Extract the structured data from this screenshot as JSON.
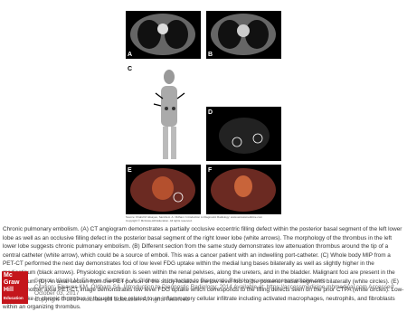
{
  "figure": {
    "panels": [
      "A",
      "B",
      "C",
      "D",
      "E",
      "F"
    ],
    "source": "Source: Khalid M. Elsayes, Sandra A. A. Oldham: Introduction to Diagnostic Radiology: www.accessmedicine.com",
    "copyright": "Copyright © McGraw-Hill Education. All rights reserved."
  },
  "caption": "Chronic pulmonary embolism. (A) CT angiogram demonstrates a partially occlusive eccentric filling defect within the posterior basal segment of the left lower lobe as well as an occlusive filling defect in the posterior basal segment of the right lower lobe (white arrows). The morphology of the thrombus in the left lower lobe suggests chronic pulmonary embolism. (B) Different section from the same study demonstrates low attenuation thrombus around the tip of a central catheter (white arrow), which could be a source of emboli. This was a cancer patient with an indwelling port-catheter. (C) Whole body MIP from a PET-CT performed the next day demonstrates foci of low level FDG uptake within the medial lung bases bilaterally as well as slightly higher in the mediastinum (black arrows). Physiologic excretion is seen within the renal pelvises, along the ureters, and in the bladder. Malignant foci are present in the mediastinum. (D) An axial section from the PET portion of the study localizes the low level foci to the posterior basal segments bilaterally (white circles). (E) and (F) Another axial PET-CT image demonstrates low level FDG uptake which corresponds to the filling defects seen on the prior CTPA (white circles). Low-level uptake in chronic thrombus is thought to be related to an inflammatory cellular infiltrate including activated macrophages, neutrophils, and fibroblasts within an organizing thrombus.",
  "citation": {
    "line1": "Source: Khalid M. Elsayes, Sandra A. A. Oldham: Introduction to Diagnostic Radiology: www.accessmedicine.com",
    "line2": "Citation: Elsayes KM, Oldham SA. Introduction to Diagnostic Radiology; 2014 Available at: https://accessmedicine.mhmedical.com Accessed: October 03, 2017",
    "line3": "Copyright © 2017 McGraw-Hill Education. All rights reserved"
  },
  "logo": [
    "Mc",
    "Graw",
    "Hill",
    "Education"
  ]
}
